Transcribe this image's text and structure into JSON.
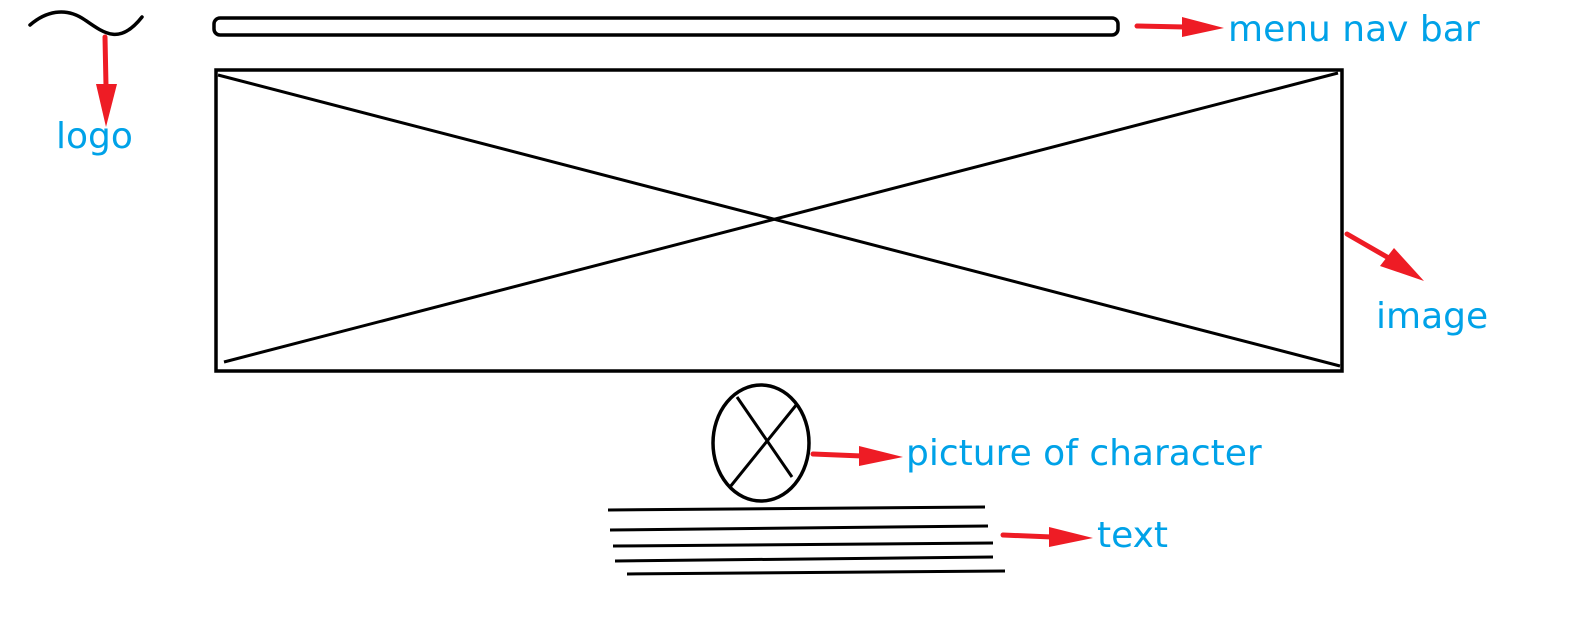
{
  "annotations": {
    "logo": "logo",
    "menu_nav_bar": "menu nav bar",
    "image": "image",
    "picture_of_character": "picture of character",
    "text": "text"
  },
  "colors": {
    "sketch_stroke": "#000000",
    "arrow": "#ee1c25",
    "label": "#00a2e8",
    "background": "#ffffff"
  },
  "icons": {
    "logo": "wave-squiggle-icon",
    "image_placeholder": "crossed-box-icon",
    "character_placeholder": "crossed-circle-icon",
    "arrow": "arrow-right-icon"
  }
}
